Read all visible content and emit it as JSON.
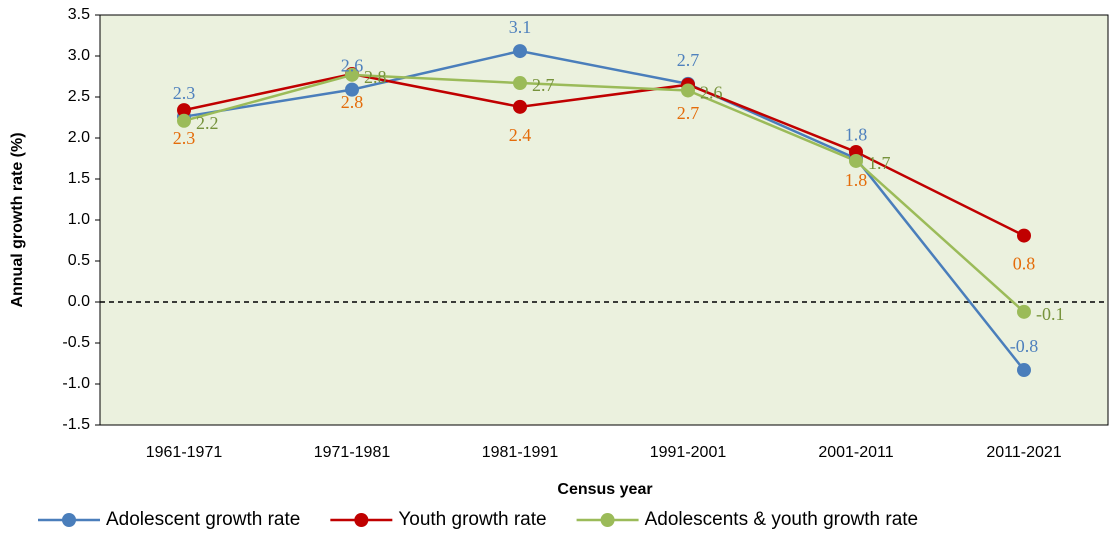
{
  "chart_data": {
    "type": "line",
    "y_label": "Annual growth rate (%)",
    "x_label": "Census year",
    "categories": [
      "1961-1971",
      "1971-1981",
      "1981-1991",
      "1991-2001",
      "2001-2011",
      "2011-2021"
    ],
    "series": [
      {
        "name": "Adolescent growth rate",
        "color": "#4a7ebb",
        "label_color": "#4f81bd",
        "values": [
          2.26,
          2.59,
          3.06,
          2.66,
          1.75,
          -0.83
        ],
        "value_labels": [
          "2.3",
          "2.6",
          "3.1",
          "2.7",
          "1.8",
          "-0.8"
        ]
      },
      {
        "name": "Youth growth rate",
        "color": "#c00000",
        "label_color": "#e46c0a",
        "values": [
          2.34,
          2.78,
          2.38,
          2.65,
          1.83,
          0.81
        ],
        "value_labels": [
          "2.3",
          "2.8",
          "2.4",
          "2.7",
          "1.8",
          "0.8"
        ]
      },
      {
        "name": "Adolescents & youth growth rate",
        "color": "#9bbb59",
        "label_color": "#77933c",
        "values": [
          2.21,
          2.77,
          2.67,
          2.58,
          1.72,
          -0.12
        ],
        "value_labels": [
          "2.2",
          "2.8",
          "2.7",
          "2.6",
          "1.7",
          "-0.1"
        ]
      }
    ],
    "ylim": [
      -1.5,
      3.5
    ],
    "yticks": [
      3.5,
      {
        "value": 3.0,
        "label": "3.0"
      },
      2.5,
      {
        "value": 2.0,
        "label": "2.0"
      },
      1.5,
      {
        "value": 1.0,
        "label": "1.0"
      },
      0.5,
      {
        "value": 0.0,
        "label": "0.0"
      },
      -0.5,
      {
        "value": -1.0,
        "label": "-1.0"
      },
      -1.5
    ],
    "zero_line": true,
    "plot_background": "#ebf1de",
    "legend": "bottom"
  }
}
